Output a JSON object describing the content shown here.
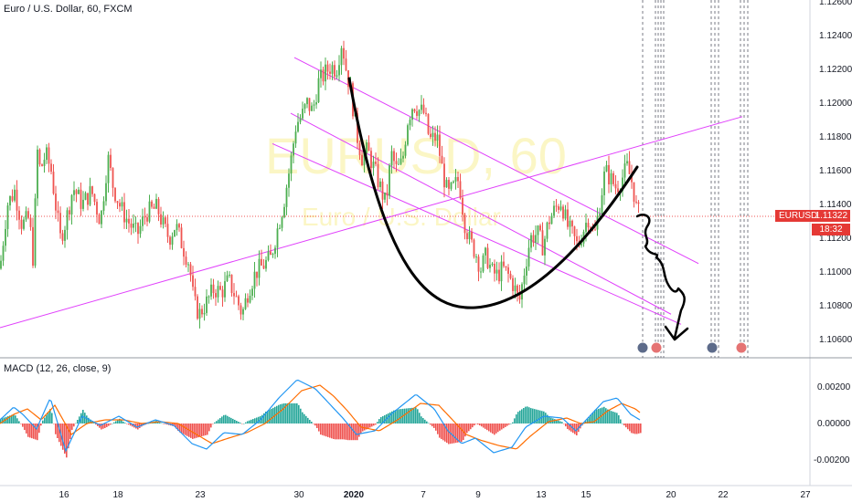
{
  "header": {
    "symbol_title": "Euro / U.S. Dollar, 60, FXCM"
  },
  "watermark": {
    "line1": "EURUSD, 60",
    "line2": "Euro / U.S. Dollar"
  },
  "price_badge": {
    "symbol": "EURUSD",
    "price": "1.11322",
    "countdown": "18:32"
  },
  "macd": {
    "title": "MACD (12, 26, close, 9)"
  },
  "colors": {
    "up": "#26a69a",
    "down": "#ef5350",
    "up_candle": "#4caf50",
    "macd_line": "#2196f3",
    "signal_line": "#ff6d00",
    "hist_up": "#26a69a",
    "hist_down": "#ef5350",
    "channel": "#e040fb",
    "drawing": "#000000",
    "price_line": "#ef5350"
  },
  "chart_data": {
    "type": "candlestick",
    "title": "Euro / U.S. Dollar, 60, FXCM",
    "y_axis_labels": [
      "1.12600",
      "1.12400",
      "1.12200",
      "1.12000",
      "1.11800",
      "1.11600",
      "1.11400",
      "1.11200",
      "1.11000",
      "1.10800",
      "1.10600"
    ],
    "macd_axis_labels": [
      "0.00200",
      "0.00000",
      "-0.00200"
    ],
    "x_axis_labels": [
      "16",
      "18",
      "23",
      "30",
      "2020",
      "7",
      "9",
      "13",
      "15",
      "20",
      "22",
      "27"
    ],
    "ylim": [
      1.1045,
      1.126
    ],
    "price_path": [
      [
        0,
        1.1102
      ],
      [
        8,
        1.114
      ],
      [
        16,
        1.1148
      ],
      [
        24,
        1.1128
      ],
      [
        32,
        1.1132
      ],
      [
        37,
        1.1103
      ],
      [
        40,
        1.1175
      ],
      [
        44,
        1.116
      ],
      [
        50,
        1.117
      ],
      [
        56,
        1.116
      ],
      [
        62,
        1.1135
      ],
      [
        66,
        1.112
      ],
      [
        72,
        1.113
      ],
      [
        80,
        1.115
      ],
      [
        90,
        1.114
      ],
      [
        100,
        1.1148
      ],
      [
        110,
        1.113
      ],
      [
        118,
        1.1168
      ],
      [
        124,
        1.115
      ],
      [
        132,
        1.1138
      ],
      [
        140,
        1.113
      ],
      [
        150,
        1.1122
      ],
      [
        160,
        1.1135
      ],
      [
        172,
        1.1138
      ],
      [
        178,
        1.1128
      ],
      [
        185,
        1.112
      ],
      [
        192,
        1.1128
      ],
      [
        200,
        1.1115
      ],
      [
        207,
        1.1105
      ],
      [
        212,
        1.1082
      ],
      [
        218,
        1.1075
      ],
      [
        226,
        1.1082
      ],
      [
        234,
        1.109
      ],
      [
        242,
        1.1088
      ],
      [
        250,
        1.1095
      ],
      [
        258,
        1.1085
      ],
      [
        265,
        1.1075
      ],
      [
        272,
        1.109
      ],
      [
        280,
        1.11
      ],
      [
        288,
        1.1104
      ],
      [
        296,
        1.1108
      ],
      [
        302,
        1.1122
      ],
      [
        310,
        1.114
      ],
      [
        318,
        1.1165
      ],
      [
        324,
        1.1188
      ],
      [
        330,
        1.1192
      ],
      [
        336,
        1.12
      ],
      [
        342,
        1.1195
      ],
      [
        348,
        1.1212
      ],
      [
        356,
        1.1218
      ],
      [
        362,
        1.1222
      ],
      [
        368,
        1.122
      ],
      [
        374,
        1.1237
      ],
      [
        378,
        1.1222
      ],
      [
        384,
        1.1206
      ],
      [
        390,
        1.1182
      ],
      [
        396,
        1.1168
      ],
      [
        402,
        1.1172
      ],
      [
        410,
        1.116
      ],
      [
        416,
        1.115
      ],
      [
        422,
        1.114
      ],
      [
        428,
        1.117
      ],
      [
        434,
        1.116
      ],
      [
        440,
        1.1165
      ],
      [
        446,
        1.119
      ],
      [
        452,
        1.12
      ],
      [
        458,
        1.1196
      ],
      [
        464,
        1.1194
      ],
      [
        470,
        1.1178
      ],
      [
        478,
        1.118
      ],
      [
        484,
        1.116
      ],
      [
        490,
        1.1145
      ],
      [
        496,
        1.115
      ],
      [
        502,
        1.1155
      ],
      [
        508,
        1.113
      ],
      [
        514,
        1.1118
      ],
      [
        520,
        1.1112
      ],
      [
        526,
        1.1102
      ],
      [
        532,
        1.111
      ],
      [
        538,
        1.11
      ],
      [
        544,
        1.1098
      ],
      [
        550,
        1.1102
      ],
      [
        556,
        1.1098
      ],
      [
        562,
        1.1092
      ],
      [
        568,
        1.1082
      ],
      [
        574,
        1.1102
      ],
      [
        580,
        1.112
      ],
      [
        588,
        1.1123
      ],
      [
        594,
        1.1115
      ],
      [
        600,
        1.113
      ],
      [
        608,
        1.1138
      ],
      [
        614,
        1.1142
      ],
      [
        620,
        1.1128
      ],
      [
        626,
        1.1122
      ],
      [
        632,
        1.1115
      ],
      [
        638,
        1.1125
      ],
      [
        644,
        1.1133
      ],
      [
        650,
        1.112
      ],
      [
        656,
        1.114
      ],
      [
        662,
        1.116
      ],
      [
        668,
        1.1155
      ],
      [
        674,
        1.115
      ],
      [
        680,
        1.1155
      ],
      [
        686,
        1.1162
      ],
      [
        692,
        1.1152
      ],
      [
        696,
        1.1138
      ],
      [
        700,
        1.1133
      ]
    ],
    "macd_path": [
      [
        0,
        0.0002
      ],
      [
        15,
        0.0009
      ],
      [
        25,
        0.0005
      ],
      [
        40,
        -0.0003
      ],
      [
        55,
        0.0014
      ],
      [
        72,
        -0.0015
      ],
      [
        90,
        0.0004
      ],
      [
        110,
        -0.0001
      ],
      [
        130,
        0.0004
      ],
      [
        150,
        -0.0002
      ],
      [
        170,
        0.0002
      ],
      [
        190,
        -0.0001
      ],
      [
        210,
        -0.0011
      ],
      [
        226,
        -0.0014
      ],
      [
        245,
        -0.0005
      ],
      [
        265,
        -0.0006
      ],
      [
        285,
        0.0002
      ],
      [
        305,
        0.0014
      ],
      [
        325,
        0.0024
      ],
      [
        345,
        0.0019
      ],
      [
        360,
        0.0011
      ],
      [
        375,
        0.0003
      ],
      [
        390,
        -0.0006
      ],
      [
        410,
        -0.0004
      ],
      [
        430,
        0.0006
      ],
      [
        455,
        0.0016
      ],
      [
        475,
        0.0008
      ],
      [
        490,
        -0.0004
      ],
      [
        505,
        -0.0011
      ],
      [
        520,
        -0.0008
      ],
      [
        540,
        -0.0016
      ],
      [
        560,
        -0.0013
      ],
      [
        575,
        -0.0002
      ],
      [
        595,
        0.0004
      ],
      [
        615,
        0.0003
      ],
      [
        630,
        -0.0004
      ],
      [
        645,
        0.0004
      ],
      [
        660,
        0.0012
      ],
      [
        675,
        0.0014
      ],
      [
        690,
        0.0005
      ],
      [
        700,
        0.0002
      ]
    ],
    "signal_path": [
      [
        0,
        0.0
      ],
      [
        15,
        0.0005
      ],
      [
        30,
        0.0008
      ],
      [
        45,
        0.0002
      ],
      [
        60,
        0.001
      ],
      [
        78,
        -0.0006
      ],
      [
        95,
        0.0
      ],
      [
        115,
        0.0002
      ],
      [
        135,
        0.0002
      ],
      [
        155,
        0.0
      ],
      [
        175,
        0.0001
      ],
      [
        195,
        0.0
      ],
      [
        215,
        -0.0006
      ],
      [
        232,
        -0.0011
      ],
      [
        250,
        -0.0008
      ],
      [
        270,
        -0.0005
      ],
      [
        290,
        0.0
      ],
      [
        310,
        0.0008
      ],
      [
        330,
        0.0018
      ],
      [
        350,
        0.0021
      ],
      [
        365,
        0.0015
      ],
      [
        380,
        0.0007
      ],
      [
        395,
        -0.0002
      ],
      [
        415,
        -0.0004
      ],
      [
        435,
        0.0002
      ],
      [
        460,
        0.0011
      ],
      [
        480,
        0.001
      ],
      [
        495,
        0.0002
      ],
      [
        510,
        -0.0006
      ],
      [
        525,
        -0.0009
      ],
      [
        545,
        -0.0012
      ],
      [
        565,
        -0.0014
      ],
      [
        580,
        -0.0007
      ],
      [
        600,
        0.0001
      ],
      [
        620,
        0.0003
      ],
      [
        635,
        0.0
      ],
      [
        650,
        0.0001
      ],
      [
        665,
        0.0007
      ],
      [
        680,
        0.0011
      ],
      [
        695,
        0.0008
      ],
      [
        700,
        0.0006
      ]
    ],
    "drawings": {
      "ascending_line": [
        [
          0,
          1.1067
        ],
        [
          812,
          1.1192
        ]
      ],
      "channel_upper": [
        [
          322,
          1.1227
        ],
        [
          764,
          1.1105
        ]
      ],
      "channel_middle": [
        [
          318,
          1.1194
        ],
        [
          734,
          1.1075
        ]
      ],
      "channel_lower": [
        [
          298,
          1.1176
        ],
        [
          745,
          1.1069
        ]
      ]
    }
  }
}
